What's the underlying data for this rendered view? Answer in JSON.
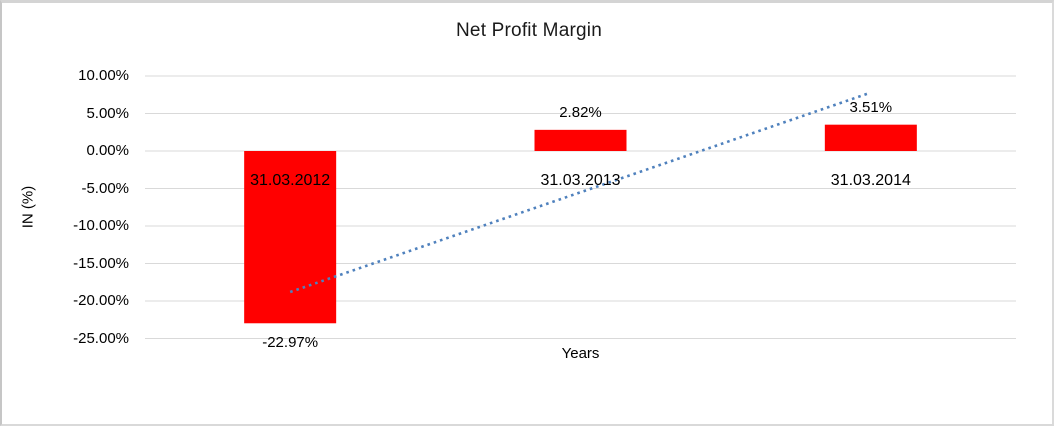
{
  "chart_data": {
    "type": "bar",
    "title": "Net Profit Margin",
    "xlabel": "Years",
    "ylabel": "IN (%)",
    "categories": [
      "31.03.2012",
      "31.03.2013",
      "31.03.2014"
    ],
    "values": [
      -22.97,
      2.82,
      3.51
    ],
    "data_labels": [
      "-22.97%",
      "2.82%",
      "3.51%"
    ],
    "bar_color": "#FF0000",
    "gridline_color": "#D9D9D9",
    "background_color": "#FFFFFF",
    "ylim": [
      -25,
      10
    ],
    "grid": true,
    "legend_position": "none",
    "yticks": [
      {
        "value": 10,
        "label": "10.00%"
      },
      {
        "value": 5,
        "label": "5.00%"
      },
      {
        "value": 0,
        "label": "0.00%"
      },
      {
        "value": -5,
        "label": "-5.00%"
      },
      {
        "value": -10,
        "label": "-10.00%"
      },
      {
        "value": -15,
        "label": "-15.00%"
      },
      {
        "value": -20,
        "label": "-20.00%"
      },
      {
        "value": -25,
        "label": "-25.00%"
      }
    ],
    "trendline": {
      "type": "linear",
      "style": "dotted",
      "color": "#4F81BD",
      "start_value": -18.8,
      "end_value": 7.7
    }
  }
}
